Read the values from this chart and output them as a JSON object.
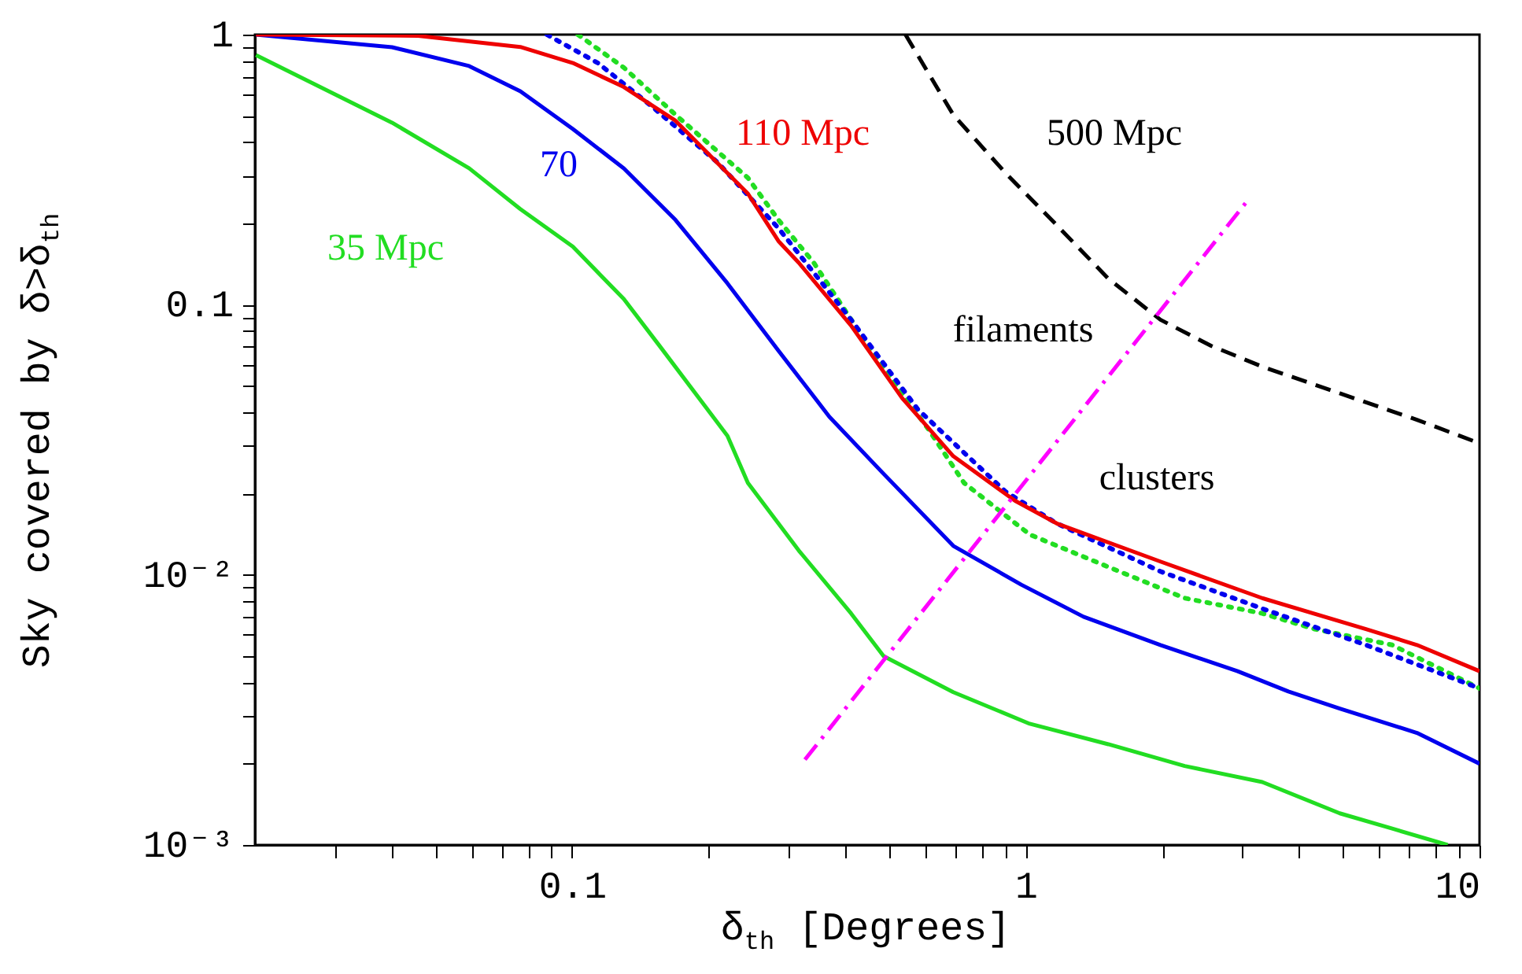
{
  "chart_data": {
    "type": "line",
    "xlabel": "δ$_{th}$ [Degrees]",
    "ylabel": "Sky covered by δ>δ$_{th}$",
    "log": "xy",
    "xlim": [
      0.02,
      10
    ],
    "ylim": [
      0.001,
      1
    ],
    "xticks": [
      {
        "value": 0.03,
        "label": null
      },
      {
        "value": 0.04,
        "label": null
      },
      {
        "value": 0.05,
        "label": null
      },
      {
        "value": 0.06,
        "label": null
      },
      {
        "value": 0.07,
        "label": null
      },
      {
        "value": 0.08,
        "label": null
      },
      {
        "value": 0.09,
        "label": null
      },
      0.1,
      {
        "value": 0.2,
        "label": null
      },
      {
        "value": 0.3,
        "label": null
      },
      {
        "value": 0.4,
        "label": null
      },
      {
        "value": 0.5,
        "label": null
      },
      {
        "value": 0.6,
        "label": null
      },
      {
        "value": 0.7,
        "label": null
      },
      {
        "value": 0.8,
        "label": null
      },
      {
        "value": 0.9,
        "label": null
      },
      1,
      {
        "value": 2,
        "label": null
      },
      {
        "value": 3,
        "label": null
      },
      {
        "value": 4,
        "label": null
      },
      {
        "value": 5,
        "label": null
      },
      {
        "value": 6,
        "label": null
      },
      {
        "value": 7,
        "label": null
      },
      {
        "value": 8,
        "label": null
      },
      {
        "value": 9,
        "label": null
      },
      10
    ],
    "yticks": [
      {
        "value": 0.001,
        "label": "10⁻³"
      },
      {
        "value": 0.002,
        "label": null
      },
      {
        "value": 0.003,
        "label": null
      },
      {
        "value": 0.004,
        "label": null
      },
      {
        "value": 0.005,
        "label": null
      },
      {
        "value": 0.006,
        "label": null
      },
      {
        "value": 0.007,
        "label": null
      },
      {
        "value": 0.008,
        "label": null
      },
      {
        "value": 0.009,
        "label": null
      },
      {
        "value": 0.01,
        "label": "10⁻²"
      },
      {
        "value": 0.02,
        "label": null
      },
      {
        "value": 0.03,
        "label": null
      },
      {
        "value": 0.04,
        "label": null
      },
      {
        "value": 0.05,
        "label": null
      },
      {
        "value": 0.06,
        "label": null
      },
      {
        "value": 0.07,
        "label": null
      },
      {
        "value": 0.08,
        "label": null
      },
      {
        "value": 0.09,
        "label": null
      },
      0.1,
      {
        "value": 0.2,
        "label": null
      },
      {
        "value": 0.3,
        "label": null
      },
      {
        "value": 0.4,
        "label": null
      },
      {
        "value": 0.5,
        "label": null
      },
      {
        "value": 0.6,
        "label": null
      },
      {
        "value": 0.7,
        "label": null
      },
      {
        "value": 0.8,
        "label": null
      },
      {
        "value": 0.9,
        "label": null
      },
      1
    ],
    "annotations": [
      "filaments",
      "clusters"
    ],
    "series": [
      {
        "name": "35 Mpc",
        "color": "#22dd22",
        "line_style": "solid",
        "x": [
          0.0201,
          0.0401,
          0.0593,
          0.0769,
          0.1004,
          0.13,
          0.156,
          0.22,
          0.244,
          0.316,
          0.412,
          0.486,
          0.692,
          1.02,
          1.52,
          2.24,
          3.32,
          4.92,
          6.42,
          8.51
        ],
        "values": [
          0.84,
          0.472,
          0.32,
          0.226,
          0.164,
          0.105,
          0.0703,
          0.0327,
          0.0219,
          0.0123,
          0.0072,
          0.005,
          0.00368,
          0.00281,
          0.00236,
          0.00196,
          0.00171,
          0.00131,
          0.00115,
          0.001
        ]
      },
      {
        "name": "70",
        "color": "#0000ee",
        "line_style": "solid",
        "x": [
          0.0201,
          0.0401,
          0.0593,
          0.0769,
          0.1004,
          0.13,
          0.169,
          0.22,
          0.285,
          0.369,
          0.482,
          0.692,
          0.977,
          1.34,
          1.98,
          2.93,
          3.79,
          4.92,
          7.28,
          10
        ],
        "values": [
          1,
          0.898,
          0.765,
          0.617,
          0.447,
          0.32,
          0.206,
          0.12,
          0.0676,
          0.0385,
          0.024,
          0.0128,
          0.0092,
          0.007,
          0.0055,
          0.0044,
          0.0037,
          0.0032,
          0.0026,
          0.002
        ]
      },
      {
        "color": "#22dd22",
        "line_style": "dotted",
        "x": [
          0.103,
          0.13,
          0.169,
          0.244,
          0.285,
          0.341,
          0.467,
          0.61,
          0.731,
          1.02,
          1.52,
          2.24,
          3.32,
          4.33,
          6.42,
          10
        ],
        "values": [
          1,
          0.755,
          0.505,
          0.295,
          0.206,
          0.143,
          0.064,
          0.0346,
          0.0219,
          0.0141,
          0.0107,
          0.0082,
          0.0072,
          0.0063,
          0.0055,
          0.0038
        ]
      },
      {
        "color": "#0000ee",
        "line_style": "dotted",
        "x": [
          0.088,
          0.114,
          0.149,
          0.209,
          0.285,
          0.412,
          0.578,
          0.903,
          1.17,
          1.98,
          3.32,
          5.62,
          10
        ],
        "values": [
          1,
          0.785,
          0.547,
          0.337,
          0.192,
          0.088,
          0.041,
          0.0203,
          0.0155,
          0.0103,
          0.0075,
          0.0055,
          0.0038
        ]
      },
      {
        "name": "110 Mpc",
        "color": "#ee0000",
        "line_style": "solid",
        "x": [
          0.0201,
          0.0458,
          0.0769,
          0.1004,
          0.13,
          0.169,
          0.22,
          0.244,
          0.285,
          0.316,
          0.412,
          0.534,
          0.692,
          0.947,
          1.17,
          1.98,
          3.32,
          5.62,
          7.28,
          10
        ],
        "values": [
          1,
          0.99,
          0.9,
          0.785,
          0.64,
          0.48,
          0.307,
          0.258,
          0.172,
          0.143,
          0.0837,
          0.0451,
          0.0275,
          0.0188,
          0.0155,
          0.0112,
          0.0082,
          0.0063,
          0.0055,
          0.0044
        ]
      },
      {
        "name": "500 Mpc",
        "color": "#000000",
        "line_style": "dashed",
        "x": [
          0.543,
          0.692,
          0.903,
          1.17,
          1.52,
          1.98,
          2.56,
          3.32,
          4.92,
          7.28,
          10
        ],
        "values": [
          1,
          0.505,
          0.307,
          0.197,
          0.125,
          0.088,
          0.0705,
          0.059,
          0.047,
          0.0375,
          0.0307
        ]
      },
      {
        "color": "#ff00ff",
        "line_style": "dashdot",
        "x": [
          0.326,
          3.07
        ],
        "values": [
          0.00207,
          0.241
        ]
      }
    ]
  }
}
